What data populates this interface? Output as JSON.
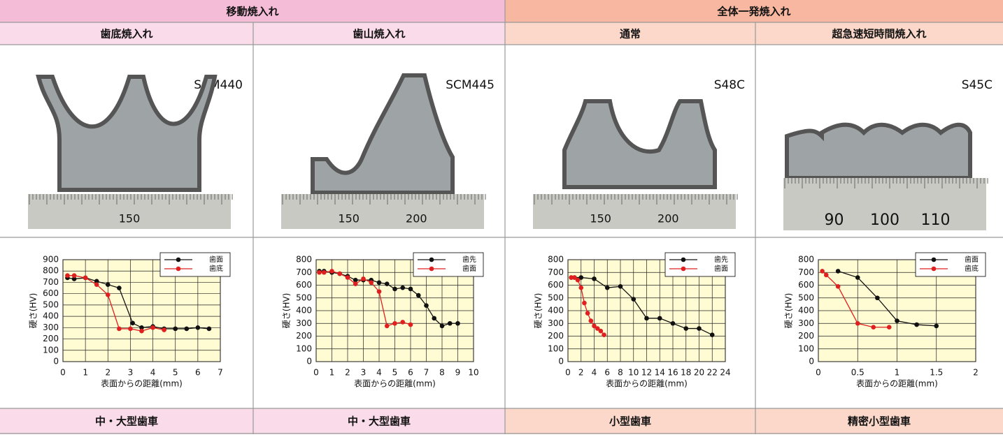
{
  "header": {
    "groups": [
      "移動焼入れ",
      "全体一発焼入れ"
    ]
  },
  "columns": [
    {
      "method": "歯底焼入れ",
      "material": "SCM440",
      "ruler_labels": [
        "150"
      ],
      "use": "中・大型歯車"
    },
    {
      "method": "歯山焼入れ",
      "material": "SCM445",
      "ruler_labels": [
        "150",
        "200"
      ],
      "use": "中・大型歯車"
    },
    {
      "method": "通常",
      "material": "S48C",
      "ruler_labels": [
        "150",
        "200"
      ],
      "use": "小型歯車"
    },
    {
      "method": "超急速短時間焼入れ",
      "material": "S45C",
      "ruler_labels": [
        "90",
        "100",
        "110"
      ],
      "use": "精密小型歯車"
    }
  ],
  "chart_data": [
    {
      "type": "line",
      "y_label": "硬さ(HV)",
      "x_label": "表面からの距離(mm)",
      "grid": true,
      "legend": "upper right",
      "xlim": [
        0,
        7
      ],
      "xticks": [
        0,
        1,
        2,
        3,
        4,
        5,
        6,
        7
      ],
      "ylim": [
        0,
        900
      ],
      "yticks": [
        0,
        100,
        200,
        300,
        400,
        500,
        600,
        700,
        800,
        900
      ],
      "series": [
        {
          "name": "歯面",
          "color": "#111111",
          "x": [
            0.2,
            0.5,
            1,
            1.5,
            2,
            2.5,
            3.1,
            3.5,
            4,
            4.5,
            5,
            5.5,
            6,
            6.5
          ],
          "values": [
            740,
            730,
            740,
            710,
            680,
            650,
            340,
            300,
            310,
            290,
            290,
            290,
            300,
            290
          ]
        },
        {
          "name": "歯底",
          "color": "#e02020",
          "x": [
            0.2,
            0.5,
            1,
            1.5,
            2,
            2.5,
            3,
            3.5,
            4,
            4.5
          ],
          "values": [
            760,
            760,
            740,
            680,
            590,
            290,
            290,
            270,
            300,
            280
          ]
        }
      ]
    },
    {
      "type": "line",
      "y_label": "硬さ(HV)",
      "x_label": "表面からの距離(mm)",
      "grid": true,
      "legend": "upper right",
      "xlim": [
        0,
        10
      ],
      "xticks": [
        0,
        1,
        2,
        3,
        4,
        5,
        6,
        7,
        8,
        9,
        10
      ],
      "ylim": [
        0,
        800
      ],
      "yticks": [
        0,
        100,
        200,
        300,
        400,
        500,
        600,
        700,
        800
      ],
      "series": [
        {
          "name": "歯先",
          "color": "#111111",
          "x": [
            0.2,
            0.5,
            1,
            1.5,
            2,
            2.5,
            3,
            3.5,
            4,
            4.5,
            5,
            5.5,
            6,
            6.5,
            7,
            7.5,
            8,
            8.5,
            9
          ],
          "values": [
            710,
            710,
            700,
            690,
            670,
            640,
            640,
            640,
            620,
            610,
            570,
            580,
            570,
            520,
            440,
            340,
            280,
            300,
            300
          ]
        },
        {
          "name": "歯面",
          "color": "#e02020",
          "x": [
            0.2,
            0.5,
            1,
            1.5,
            2,
            2.5,
            3,
            3.5,
            4,
            4.5,
            5,
            5.5,
            6
          ],
          "values": [
            700,
            700,
            710,
            690,
            660,
            610,
            650,
            620,
            550,
            280,
            300,
            310,
            290
          ]
        }
      ]
    },
    {
      "type": "line",
      "y_label": "硬さ(HV)",
      "x_label": "表面からの距離(mm)",
      "grid": true,
      "legend": "upper right",
      "xlim": [
        0,
        24
      ],
      "xticks": [
        0,
        2,
        4,
        6,
        8,
        10,
        12,
        14,
        16,
        18,
        20,
        22,
        24
      ],
      "ylim": [
        0,
        800
      ],
      "yticks": [
        0,
        100,
        200,
        300,
        400,
        500,
        600,
        700,
        800
      ],
      "series": [
        {
          "name": "歯先",
          "color": "#111111",
          "x": [
            0.5,
            1,
            2,
            4,
            6,
            8,
            10,
            12,
            14,
            16,
            18,
            20,
            22
          ],
          "values": [
            660,
            660,
            660,
            650,
            580,
            590,
            490,
            340,
            340,
            300,
            260,
            260,
            210
          ]
        },
        {
          "name": "歯面",
          "color": "#e02020",
          "x": [
            0.5,
            1,
            1.5,
            2,
            2.5,
            3,
            3.5,
            4,
            4.5,
            5,
            5.5
          ],
          "values": [
            660,
            660,
            640,
            580,
            460,
            380,
            320,
            280,
            260,
            240,
            210
          ]
        }
      ]
    },
    {
      "type": "line",
      "y_label": "硬さ(HV)",
      "x_label": "表面からの距離(mm)",
      "grid": true,
      "legend": "upper right",
      "xlim": [
        0,
        2
      ],
      "xticks": [
        0,
        0.5,
        1,
        1.5,
        2
      ],
      "ylim": [
        0,
        800
      ],
      "yticks": [
        0,
        100,
        200,
        300,
        400,
        500,
        600,
        700,
        800
      ],
      "series": [
        {
          "name": "歯面",
          "color": "#111111",
          "x": [
            0.25,
            0.5,
            0.75,
            1,
            1.25,
            1.5
          ],
          "values": [
            710,
            660,
            500,
            320,
            290,
            280
          ]
        },
        {
          "name": "歯底",
          "color": "#e02020",
          "x": [
            0.05,
            0.1,
            0.25,
            0.5,
            0.7,
            0.9
          ],
          "values": [
            710,
            680,
            590,
            300,
            270,
            270
          ]
        }
      ]
    }
  ]
}
